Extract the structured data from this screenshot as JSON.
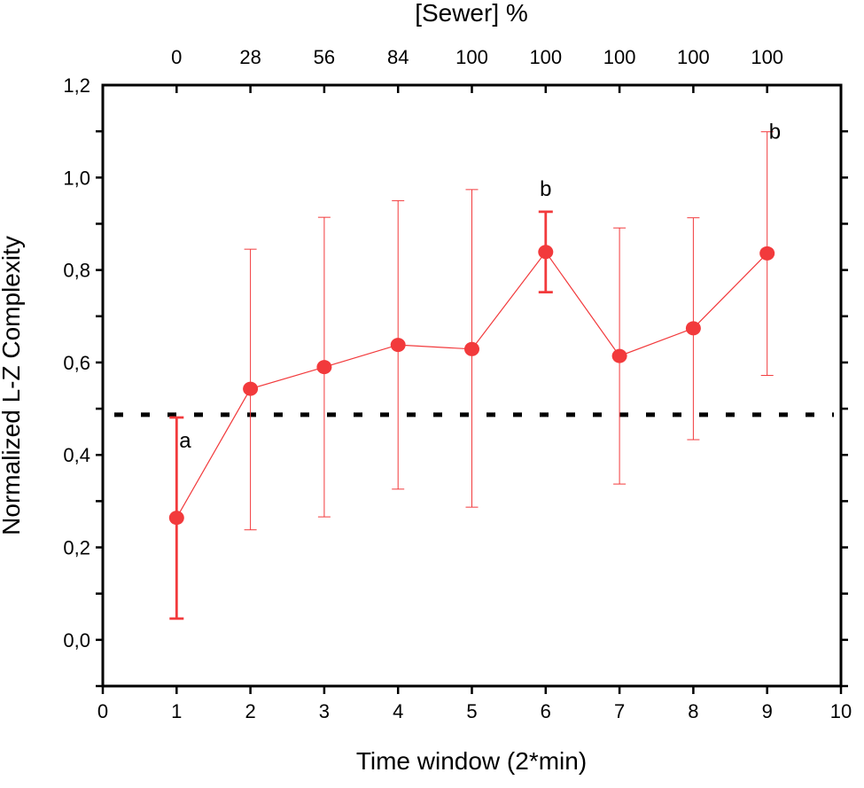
{
  "chart_data": {
    "type": "line",
    "xlabel": "Time window (2*min)",
    "ylabel": "Normalized L-Z Complexity",
    "top_axis_label": "[Sewer] %",
    "top_tick_labels": [
      "0",
      "28",
      "56",
      "84",
      "100",
      "100",
      "100",
      "100",
      "100"
    ],
    "xlim": [
      0,
      10
    ],
    "ylim": [
      -0.1,
      1.2
    ],
    "x_ticks": [
      "0",
      "1",
      "2",
      "3",
      "4",
      "5",
      "6",
      "7",
      "8",
      "9",
      "10"
    ],
    "y_ticks": [
      "0,0",
      "0,2",
      "0,4",
      "0,6",
      "0,8",
      "1,0",
      "1,2"
    ],
    "grid": false,
    "color": "#f23a3c",
    "x": [
      1,
      2,
      3,
      4,
      5,
      6,
      7,
      8,
      9
    ],
    "values": [
      0.264,
      0.543,
      0.59,
      0.638,
      0.629,
      0.839,
      0.614,
      0.674,
      0.836
    ],
    "error_upper": [
      0.481,
      0.845,
      0.914,
      0.95,
      0.974,
      0.926,
      0.891,
      0.913,
      1.099
    ],
    "error_lower": [
      0.046,
      0.238,
      0.266,
      0.326,
      0.287,
      0.752,
      0.337,
      0.433,
      0.572
    ],
    "bold_error_bars": [
      1,
      6
    ],
    "reference_line": {
      "y": 0.487,
      "style": "dashed",
      "color": "#000000"
    },
    "annotations": [
      {
        "x": 1,
        "text": "a"
      },
      {
        "x": 6,
        "text": "b"
      },
      {
        "x": 9,
        "text": "b"
      }
    ]
  }
}
